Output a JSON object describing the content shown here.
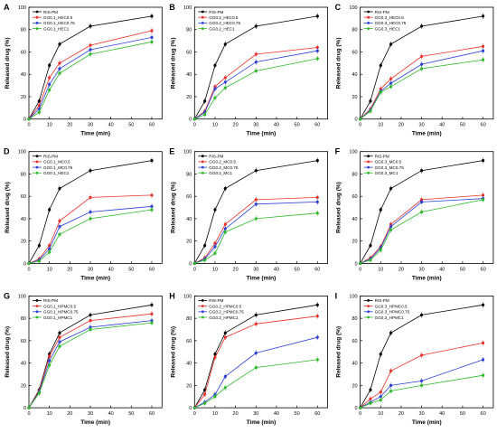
{
  "chart_data": [
    {
      "panel": "A",
      "type": "line",
      "xlabel": "Time (min)",
      "ylabel": "Released drug (%)",
      "xlim": [
        0,
        65
      ],
      "ylim": [
        0,
        100
      ],
      "xticks": [
        0,
        10,
        20,
        30,
        40,
        50,
        60
      ],
      "yticks": [
        0,
        20,
        40,
        60,
        80,
        100
      ],
      "legend_position": "top-left",
      "x": [
        0,
        5,
        10,
        15,
        30,
        60
      ],
      "series": [
        {
          "name": "RIS-PM",
          "color": "#000000",
          "values": [
            0,
            16,
            48,
            67,
            83,
            92
          ]
        },
        {
          "name": "GG0.1_HEC0.5",
          "color": "#e8302b",
          "values": [
            0,
            12,
            37,
            50,
            66,
            79
          ]
        },
        {
          "name": "GG0.1_HEC0.75",
          "color": "#2d3ed4",
          "values": [
            0,
            9,
            31,
            45,
            62,
            73
          ]
        },
        {
          "name": "GG0.1_HEC1",
          "color": "#2fb82c",
          "values": [
            0,
            6,
            26,
            41,
            58,
            69
          ]
        }
      ]
    },
    {
      "panel": "B",
      "type": "line",
      "xlabel": "Time (min)",
      "ylabel": "Released drug (%)",
      "xlim": [
        0,
        65
      ],
      "ylim": [
        0,
        100
      ],
      "xticks": [
        0,
        10,
        20,
        30,
        40,
        50,
        60
      ],
      "yticks": [
        0,
        20,
        40,
        60,
        80,
        100
      ],
      "legend_position": "top-left",
      "x": [
        0,
        5,
        10,
        15,
        30,
        60
      ],
      "series": [
        {
          "name": "RIS-PM",
          "color": "#000000",
          "values": [
            0,
            16,
            48,
            67,
            83,
            92
          ]
        },
        {
          "name": "GG0.2_HEC0.5",
          "color": "#e8302b",
          "values": [
            0,
            7,
            29,
            37,
            58,
            64
          ]
        },
        {
          "name": "GG0.2_HEC0.75",
          "color": "#2d3ed4",
          "values": [
            0,
            6,
            27,
            33,
            51,
            61
          ]
        },
        {
          "name": "GG0.2_HEC1",
          "color": "#2fb82c",
          "values": [
            0,
            4,
            19,
            28,
            43,
            54
          ]
        }
      ]
    },
    {
      "panel": "C",
      "type": "line",
      "xlabel": "Time (min)",
      "ylabel": "Released drug (%)",
      "xlim": [
        0,
        65
      ],
      "ylim": [
        0,
        100
      ],
      "xticks": [
        0,
        10,
        20,
        30,
        40,
        50,
        60
      ],
      "yticks": [
        0,
        20,
        40,
        60,
        80,
        100
      ],
      "legend_position": "top-left",
      "x": [
        0,
        5,
        10,
        15,
        30,
        60
      ],
      "series": [
        {
          "name": "RIS-PM",
          "color": "#000000",
          "values": [
            0,
            16,
            48,
            67,
            83,
            92
          ]
        },
        {
          "name": "GG0.3_HEC0.5",
          "color": "#e8302b",
          "values": [
            0,
            9,
            27,
            36,
            56,
            65
          ]
        },
        {
          "name": "GG0.3_HEC0.75",
          "color": "#2d3ed4",
          "values": [
            0,
            8,
            25,
            32,
            49,
            61
          ]
        },
        {
          "name": "GG0.3_HEC1",
          "color": "#2fb82c",
          "values": [
            0,
            7,
            24,
            29,
            45,
            53
          ]
        }
      ]
    },
    {
      "panel": "D",
      "type": "line",
      "xlabel": "Time (min)",
      "ylabel": "Released drug (%)",
      "xlim": [
        0,
        65
      ],
      "ylim": [
        0,
        100
      ],
      "xticks": [
        0,
        10,
        20,
        30,
        40,
        50,
        60
      ],
      "yticks": [
        0,
        20,
        40,
        60,
        80,
        100
      ],
      "legend_position": "top-left",
      "x": [
        0,
        5,
        10,
        15,
        30,
        60
      ],
      "series": [
        {
          "name": "RIS-PM",
          "color": "#000000",
          "values": [
            0,
            16,
            48,
            67,
            83,
            92
          ]
        },
        {
          "name": "GG0.1_MC0.5",
          "color": "#e8302b",
          "values": [
            0,
            4,
            16,
            38,
            59,
            61
          ]
        },
        {
          "name": "GG0.1_MC0.75",
          "color": "#2d3ed4",
          "values": [
            0,
            3,
            13,
            33,
            46,
            51
          ]
        },
        {
          "name": "GG0.1_HEC1",
          "color": "#2fb82c",
          "values": [
            0,
            2,
            10,
            26,
            40,
            48
          ]
        }
      ]
    },
    {
      "panel": "E",
      "type": "line",
      "xlabel": "Time (min)",
      "ylabel": "Released drug (%)",
      "xlim": [
        0,
        65
      ],
      "ylim": [
        0,
        100
      ],
      "xticks": [
        0,
        10,
        20,
        30,
        40,
        50,
        60
      ],
      "yticks": [
        0,
        20,
        40,
        60,
        80,
        100
      ],
      "legend_position": "top-left",
      "x": [
        0,
        5,
        10,
        15,
        30,
        60
      ],
      "series": [
        {
          "name": "RIS-PM",
          "color": "#000000",
          "values": [
            0,
            16,
            48,
            67,
            83,
            92
          ]
        },
        {
          "name": "GG0.2_MC0.5",
          "color": "#e8302b",
          "values": [
            0,
            5,
            18,
            35,
            57,
            59
          ]
        },
        {
          "name": "GG0.2_MC0.75",
          "color": "#2d3ed4",
          "values": [
            0,
            4,
            15,
            31,
            53,
            55
          ]
        },
        {
          "name": "GG0.2_MC1",
          "color": "#2fb82c",
          "values": [
            0,
            3,
            9,
            28,
            40,
            45
          ]
        }
      ]
    },
    {
      "panel": "F",
      "type": "line",
      "xlabel": "Time (min)",
      "ylabel": "Released drug (%)",
      "xlim": [
        0,
        65
      ],
      "ylim": [
        0,
        100
      ],
      "xticks": [
        0,
        10,
        20,
        30,
        40,
        50,
        60
      ],
      "yticks": [
        0,
        20,
        40,
        60,
        80,
        100
      ],
      "legend_position": "top-left",
      "x": [
        0,
        5,
        10,
        15,
        30,
        60
      ],
      "series": [
        {
          "name": "RIS-PM",
          "color": "#000000",
          "values": [
            0,
            16,
            48,
            67,
            83,
            92
          ]
        },
        {
          "name": "GG0.3_MC0.5",
          "color": "#e8302b",
          "values": [
            0,
            5,
            15,
            35,
            57,
            61
          ]
        },
        {
          "name": "GG0.3_MC0.75",
          "color": "#2d3ed4",
          "values": [
            0,
            4,
            14,
            33,
            55,
            58
          ]
        },
        {
          "name": "GG0.3_MC1",
          "color": "#2fb82c",
          "values": [
            0,
            3,
            12,
            30,
            46,
            57
          ]
        }
      ]
    },
    {
      "panel": "G",
      "type": "line",
      "xlabel": "Time (min)",
      "ylabel": "Released drug (%)",
      "xlim": [
        0,
        65
      ],
      "ylim": [
        0,
        100
      ],
      "xticks": [
        0,
        10,
        20,
        30,
        40,
        50,
        60
      ],
      "yticks": [
        0,
        20,
        40,
        60,
        80,
        100
      ],
      "legend_position": "top-left",
      "x": [
        0,
        5,
        10,
        15,
        30,
        60
      ],
      "series": [
        {
          "name": "RIS-PM",
          "color": "#000000",
          "values": [
            0,
            16,
            48,
            67,
            83,
            92
          ]
        },
        {
          "name": "GG0.1_HPMC0.5",
          "color": "#e8302b",
          "values": [
            0,
            15,
            46,
            63,
            78,
            84
          ]
        },
        {
          "name": "GG0.1_HPMC0.75",
          "color": "#2d3ed4",
          "values": [
            0,
            14,
            42,
            59,
            72,
            78
          ]
        },
        {
          "name": "GG0.1_HPMC1",
          "color": "#2fb82c",
          "values": [
            0,
            13,
            38,
            55,
            70,
            76
          ]
        }
      ]
    },
    {
      "panel": "H",
      "type": "line",
      "xlabel": "Time (min)",
      "ylabel": "Released drug (%)",
      "xlim": [
        0,
        65
      ],
      "ylim": [
        0,
        100
      ],
      "xticks": [
        0,
        10,
        20,
        30,
        40,
        50,
        60
      ],
      "yticks": [
        0,
        20,
        40,
        60,
        80,
        100
      ],
      "legend_position": "top-left",
      "x": [
        0,
        5,
        10,
        15,
        30,
        60
      ],
      "series": [
        {
          "name": "RIS-PM",
          "color": "#000000",
          "values": [
            0,
            16,
            48,
            67,
            83,
            92
          ]
        },
        {
          "name": "GG0.2_HPMC0.5",
          "color": "#e8302b",
          "values": [
            0,
            12,
            45,
            63,
            75,
            82
          ]
        },
        {
          "name": "GG0.2_HPMC0.75",
          "color": "#2d3ed4",
          "values": [
            0,
            5,
            12,
            28,
            49,
            63
          ]
        },
        {
          "name": "GG0.2_HPMC1",
          "color": "#2fb82c",
          "values": [
            0,
            4,
            10,
            18,
            36,
            43
          ]
        }
      ]
    },
    {
      "panel": "I",
      "type": "line",
      "xlabel": "Time (min)",
      "ylabel": "Released drug (%)",
      "xlim": [
        0,
        65
      ],
      "ylim": [
        0,
        100
      ],
      "xticks": [
        0,
        10,
        20,
        30,
        40,
        50,
        60
      ],
      "yticks": [
        0,
        20,
        40,
        60,
        80,
        100
      ],
      "legend_position": "top-left",
      "x": [
        0,
        5,
        10,
        15,
        30,
        60
      ],
      "series": [
        {
          "name": "RIS-PM",
          "color": "#000000",
          "values": [
            0,
            16,
            48,
            67,
            83,
            92
          ]
        },
        {
          "name": "GG0.3_HPMC0.5",
          "color": "#e8302b",
          "values": [
            0,
            8,
            14,
            33,
            47,
            58
          ]
        },
        {
          "name": "GG0.3_HPMC0.75",
          "color": "#2d3ed4",
          "values": [
            0,
            5,
            10,
            20,
            24,
            43
          ]
        },
        {
          "name": "GG0.3_HPMC1",
          "color": "#2fb82c",
          "values": [
            0,
            4,
            7,
            15,
            20,
            29
          ]
        }
      ]
    }
  ]
}
